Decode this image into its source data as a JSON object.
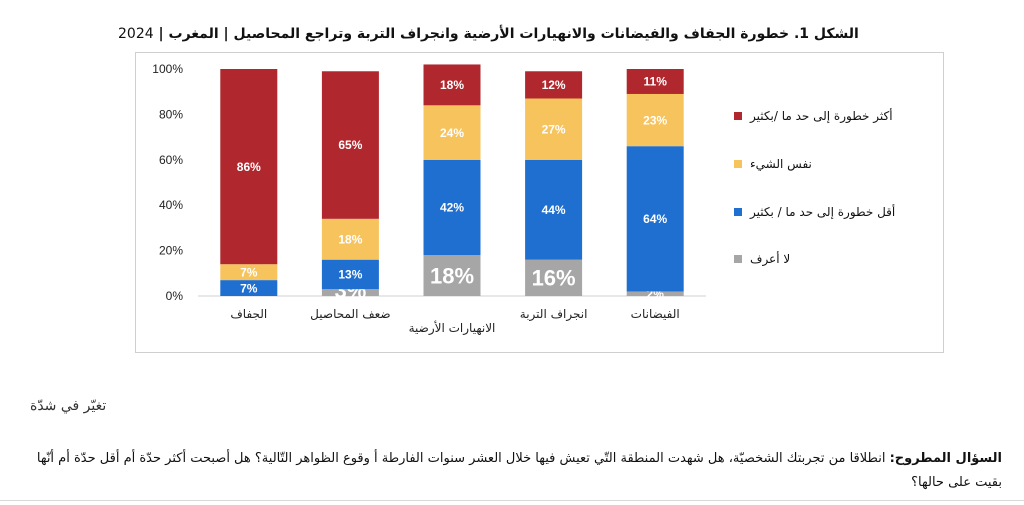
{
  "title": {
    "lead": "الشكل 1. خطورة الجفاف والفيضانات والانهيارات الأرضية وانجراف التربة وتراجع المحاصيل",
    "country": "| المغرب |",
    "year": "2024"
  },
  "colors": {
    "much_more": "#b0272d",
    "same": "#f7c35d",
    "less": "#1f6fd1",
    "dont_know": "#a6a6a6"
  },
  "chart_data": {
    "type": "bar",
    "stacked": true,
    "categories": [
      "الجفاف",
      "ضعف المحاصيل",
      "الانهيارات الأرضية",
      "انجراف التربة",
      "الفيضانات"
    ],
    "series": [
      {
        "name": "لا أعرف",
        "values": [
          0,
          3,
          18,
          16,
          2
        ]
      },
      {
        "name": "أقل خطورة إلى حد ما / بكثير",
        "values": [
          7,
          13,
          42,
          44,
          64
        ]
      },
      {
        "name": "نفس الشيء",
        "values": [
          7,
          18,
          24,
          27,
          23
        ]
      },
      {
        "name": "أكثر خطورة إلى حد ما /بكثير",
        "values": [
          86,
          65,
          18,
          12,
          11
        ]
      }
    ],
    "y_ticks": [
      "0%",
      "20%",
      "40%",
      "60%",
      "80%",
      "100%"
    ],
    "ylim": [
      0,
      100
    ],
    "legend_position": "right"
  },
  "legend": [
    {
      "label": "أكثر خطورة إلى حد ما /بكثير",
      "color_key": "much_more"
    },
    {
      "label": "نفس الشيء",
      "color_key": "same"
    },
    {
      "label": "أقل خطورة إلى حد ما / بكثير",
      "color_key": "less"
    },
    {
      "label": "لا أعرف",
      "color_key": "dont_know"
    }
  ],
  "note": "تغيّر في شدّة",
  "question": {
    "label": "السؤال المطروح:",
    "text": " انطلاقا من تجربتك الشخصيّة، هل شهدت المنطقة التّي تعيش فيها خلال العشر سنوات الفارطة أ وقوع الظواهر التّالية؟ هل أصبحت أكثر حدّة أم أقل حدّة أم أنّها بقيت على حالها؟"
  }
}
